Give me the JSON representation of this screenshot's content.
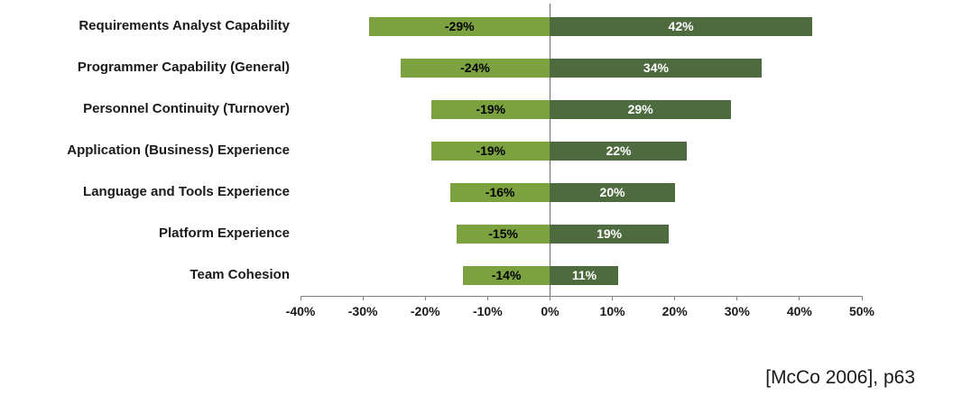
{
  "chart_data": {
    "type": "bar",
    "orientation": "horizontal_diverging",
    "title": "",
    "xlabel": "",
    "ylabel": "",
    "xlim": [
      -40,
      50
    ],
    "x_ticks": [
      -40,
      -30,
      -20,
      -10,
      0,
      10,
      20,
      30,
      40,
      50
    ],
    "x_tick_labels": [
      "-40%",
      "-30%",
      "-20%",
      "-10%",
      "0%",
      "10%",
      "20%",
      "30%",
      "40%",
      "50%"
    ],
    "categories": [
      "Requirements Analyst Capability",
      "Programmer Capability (General)",
      "Personnel Continuity (Turnover)",
      "Application (Business) Experience",
      "Language and Tools Experience",
      "Platform Experience",
      "Team Cohesion"
    ],
    "series": [
      {
        "name": "decrease",
        "color": "#7BA23F",
        "label_color": "#000000",
        "values": [
          -29,
          -24,
          -19,
          -19,
          -16,
          -15,
          -14
        ],
        "labels": [
          "-29%",
          "-24%",
          "-19%",
          "-19%",
          "-16%",
          "-15%",
          "-14%"
        ]
      },
      {
        "name": "increase",
        "color": "#4D6B3E",
        "label_color": "#FFFFFF",
        "values": [
          42,
          34,
          29,
          22,
          20,
          19,
          11
        ],
        "labels": [
          "42%",
          "34%",
          "29%",
          "22%",
          "20%",
          "19%",
          "11%"
        ]
      }
    ],
    "grid": "zero_line_only",
    "legend": "none"
  },
  "caption": "[McCo 2006], p63"
}
